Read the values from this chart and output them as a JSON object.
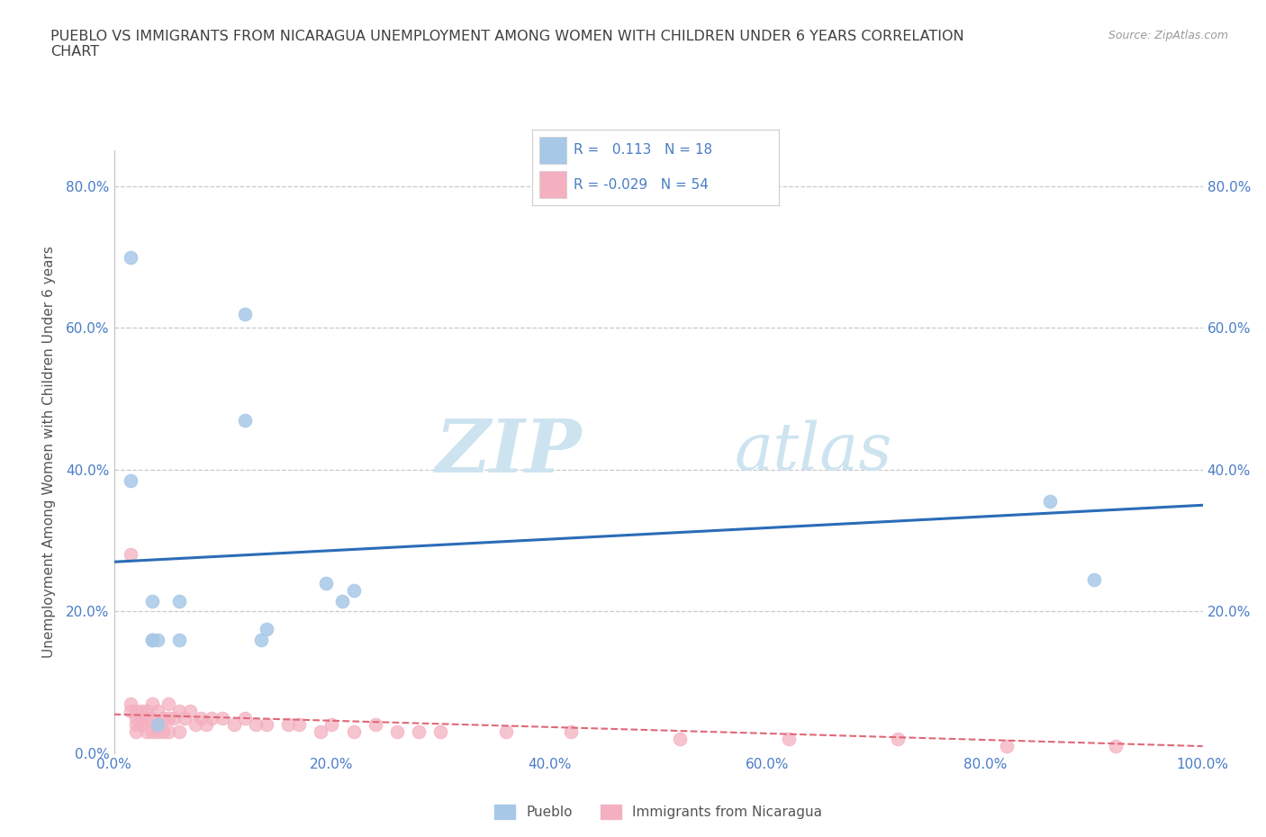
{
  "title": "PUEBLO VS IMMIGRANTS FROM NICARAGUA UNEMPLOYMENT AMONG WOMEN WITH CHILDREN UNDER 6 YEARS CORRELATION\nCHART",
  "source": "Source: ZipAtlas.com",
  "ylabel_label": "Unemployment Among Women with Children Under 6 years",
  "pueblo_R": 0.113,
  "pueblo_N": 18,
  "nicaragua_R": -0.029,
  "nicaragua_N": 54,
  "pueblo_color": "#a8c8e8",
  "nicaragua_color": "#f4b0c0",
  "pueblo_line_color": "#2b6cb8",
  "nicaragua_line_color": "#e06878",
  "xlim": [
    0,
    1.0
  ],
  "ylim": [
    0,
    0.85
  ],
  "xticks": [
    0.0,
    0.2,
    0.4,
    0.6,
    0.8,
    1.0
  ],
  "xtick_labels": [
    "0.0%",
    "20.0%",
    "40.0%",
    "60.0%",
    "80.0%",
    "100.0%"
  ],
  "yticks": [
    0.0,
    0.2,
    0.4,
    0.6,
    0.8
  ],
  "ytick_labels": [
    "0.0%",
    "20.0%",
    "40.0%",
    "60.0%",
    "80.0%"
  ],
  "right_ytick_labels": [
    "20.0%",
    "40.0%",
    "60.0%",
    "80.0%"
  ],
  "pueblo_x": [
    0.015,
    0.12,
    0.12,
    0.015,
    0.035,
    0.06,
    0.21,
    0.22,
    0.035,
    0.04,
    0.035,
    0.06,
    0.14,
    0.135,
    0.195,
    0.86,
    0.9,
    0.04
  ],
  "pueblo_y": [
    0.7,
    0.62,
    0.47,
    0.385,
    0.215,
    0.215,
    0.215,
    0.23,
    0.16,
    0.16,
    0.16,
    0.16,
    0.175,
    0.16,
    0.24,
    0.355,
    0.245,
    0.04
  ],
  "nicaragua_x": [
    0.015,
    0.015,
    0.015,
    0.02,
    0.02,
    0.02,
    0.02,
    0.025,
    0.025,
    0.025,
    0.03,
    0.03,
    0.03,
    0.035,
    0.035,
    0.035,
    0.04,
    0.04,
    0.04,
    0.045,
    0.045,
    0.05,
    0.05,
    0.05,
    0.055,
    0.06,
    0.06,
    0.065,
    0.07,
    0.075,
    0.08,
    0.085,
    0.09,
    0.1,
    0.11,
    0.12,
    0.13,
    0.14,
    0.16,
    0.17,
    0.19,
    0.2,
    0.22,
    0.24,
    0.26,
    0.28,
    0.3,
    0.36,
    0.42,
    0.52,
    0.62,
    0.72,
    0.82,
    0.92
  ],
  "nicaragua_y": [
    0.28,
    0.07,
    0.06,
    0.06,
    0.05,
    0.04,
    0.03,
    0.06,
    0.05,
    0.04,
    0.06,
    0.05,
    0.03,
    0.07,
    0.05,
    0.03,
    0.06,
    0.04,
    0.03,
    0.05,
    0.03,
    0.07,
    0.05,
    0.03,
    0.05,
    0.06,
    0.03,
    0.05,
    0.06,
    0.04,
    0.05,
    0.04,
    0.05,
    0.05,
    0.04,
    0.05,
    0.04,
    0.04,
    0.04,
    0.04,
    0.03,
    0.04,
    0.03,
    0.04,
    0.03,
    0.03,
    0.03,
    0.03,
    0.03,
    0.02,
    0.02,
    0.02,
    0.01,
    0.01
  ],
  "pueblo_line_x0": 0.0,
  "pueblo_line_y0": 0.27,
  "pueblo_line_x1": 1.0,
  "pueblo_line_y1": 0.35,
  "nicaragua_line_x0": 0.0,
  "nicaragua_line_y0": 0.055,
  "nicaragua_line_x1": 1.0,
  "nicaragua_line_y1": 0.01,
  "background_color": "#ffffff",
  "grid_color": "#c8c8d0",
  "marker_size": 110,
  "title_color": "#404040",
  "axis_color": "#4a7cc7",
  "watermark_zip": "ZIP",
  "watermark_atlas": "atlas",
  "watermark_color": "#cde4f0",
  "watermark_fontsize": 60
}
